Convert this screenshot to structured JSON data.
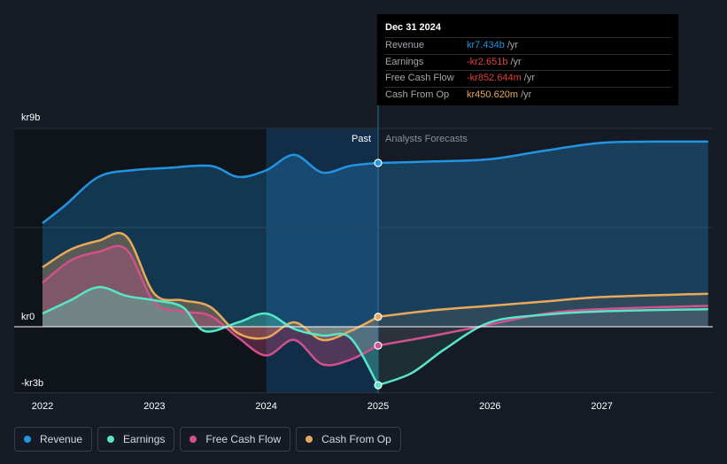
{
  "chart_data": {
    "type": "line",
    "x_ticks": [
      "2022",
      "2023",
      "2024",
      "2025",
      "2026",
      "2027"
    ],
    "y_ticks": [
      "kr9b",
      "kr0",
      "-kr3b"
    ],
    "xlim": [
      2021.8,
      2027.95
    ],
    "ylim": [
      -3,
      9
    ],
    "y_unit": "b kr",
    "past_label": "Past",
    "forecast_label": "Analysts Forecasts",
    "divider_x": 2025.0,
    "highlight_range": [
      2024.0,
      2025.0
    ],
    "series": [
      {
        "name": "Revenue",
        "color": "#2394df",
        "past": [
          [
            2022.0,
            4.7
          ],
          [
            2022.2,
            5.5
          ],
          [
            2022.5,
            6.8
          ],
          [
            2022.8,
            7.1
          ],
          [
            2023.1,
            7.2
          ],
          [
            2023.5,
            7.3
          ],
          [
            2023.75,
            6.8
          ],
          [
            2024.0,
            7.1
          ],
          [
            2024.25,
            7.8
          ],
          [
            2024.5,
            7.0
          ],
          [
            2024.75,
            7.3
          ],
          [
            2025.0,
            7.434
          ]
        ],
        "forecast": [
          [
            2025.0,
            7.434
          ],
          [
            2025.5,
            7.5
          ],
          [
            2026.0,
            7.6
          ],
          [
            2026.5,
            8.0
          ],
          [
            2027.0,
            8.35
          ],
          [
            2027.5,
            8.4
          ],
          [
            2027.95,
            8.4
          ]
        ]
      },
      {
        "name": "Earnings",
        "color": "#58e6c8",
        "past": [
          [
            2022.0,
            0.6
          ],
          [
            2022.25,
            1.2
          ],
          [
            2022.5,
            1.8
          ],
          [
            2022.75,
            1.4
          ],
          [
            2023.0,
            1.2
          ],
          [
            2023.25,
            0.9
          ],
          [
            2023.45,
            -0.2
          ],
          [
            2023.75,
            0.2
          ],
          [
            2024.0,
            0.6
          ],
          [
            2024.25,
            -0.1
          ],
          [
            2024.5,
            -0.4
          ],
          [
            2024.75,
            -0.5
          ],
          [
            2025.0,
            -2.651
          ]
        ],
        "forecast": [
          [
            2025.0,
            -2.651
          ],
          [
            2025.3,
            -2.1
          ],
          [
            2025.6,
            -1.0
          ],
          [
            2026.0,
            0.2
          ],
          [
            2026.5,
            0.55
          ],
          [
            2027.0,
            0.7
          ],
          [
            2027.95,
            0.8
          ]
        ]
      },
      {
        "name": "Free Cash Flow",
        "color": "#d2508c",
        "past": [
          [
            2022.0,
            2.0
          ],
          [
            2022.25,
            3.0
          ],
          [
            2022.5,
            3.4
          ],
          [
            2022.75,
            3.5
          ],
          [
            2023.0,
            1.1
          ],
          [
            2023.25,
            0.7
          ],
          [
            2023.5,
            0.5
          ],
          [
            2023.75,
            -0.5
          ],
          [
            2024.0,
            -1.3
          ],
          [
            2024.25,
            -0.6
          ],
          [
            2024.5,
            -1.7
          ],
          [
            2024.75,
            -1.5
          ],
          [
            2025.0,
            -0.853
          ]
        ],
        "forecast": [
          [
            2025.0,
            -0.853
          ],
          [
            2025.5,
            -0.4
          ],
          [
            2026.0,
            0.1
          ],
          [
            2026.5,
            0.6
          ],
          [
            2027.0,
            0.8
          ],
          [
            2027.95,
            0.95
          ]
        ]
      },
      {
        "name": "Cash From Op",
        "color": "#e8a95b",
        "past": [
          [
            2022.0,
            2.7
          ],
          [
            2022.25,
            3.5
          ],
          [
            2022.5,
            3.9
          ],
          [
            2022.75,
            4.1
          ],
          [
            2023.0,
            1.5
          ],
          [
            2023.25,
            1.2
          ],
          [
            2023.5,
            0.9
          ],
          [
            2023.75,
            -0.3
          ],
          [
            2024.0,
            -0.5
          ],
          [
            2024.25,
            0.2
          ],
          [
            2024.5,
            -0.6
          ],
          [
            2024.75,
            -0.2
          ],
          [
            2025.0,
            0.451
          ]
        ],
        "forecast": [
          [
            2025.0,
            0.451
          ],
          [
            2025.5,
            0.75
          ],
          [
            2026.0,
            0.95
          ],
          [
            2026.5,
            1.15
          ],
          [
            2027.0,
            1.35
          ],
          [
            2027.95,
            1.5
          ]
        ]
      }
    ]
  },
  "tooltip": {
    "date": "Dec 31 2024",
    "rows": [
      {
        "label": "Revenue",
        "value": "kr7.434b",
        "unit": "/yr",
        "color": "#2394df"
      },
      {
        "label": "Earnings",
        "value": "-kr2.651b",
        "unit": "/yr",
        "color": "#e0403f"
      },
      {
        "label": "Free Cash Flow",
        "value": "-kr852.644m",
        "unit": "/yr",
        "color": "#e0403f"
      },
      {
        "label": "Cash From Op",
        "value": "kr450.620m",
        "unit": "/yr",
        "color": "#e8a95b"
      }
    ]
  },
  "legend": [
    {
      "label": "Revenue",
      "color": "#2394df"
    },
    {
      "label": "Earnings",
      "color": "#58e6c8"
    },
    {
      "label": "Free Cash Flow",
      "color": "#d2508c"
    },
    {
      "label": "Cash From Op",
      "color": "#e8a95b"
    }
  ]
}
